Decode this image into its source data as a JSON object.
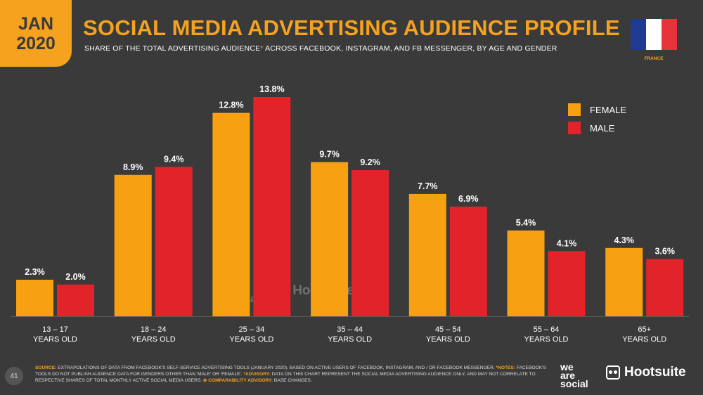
{
  "badge": {
    "month": "JAN",
    "year": "2020"
  },
  "header": {
    "title": "SOCIAL MEDIA ADVERTISING AUDIENCE PROFILE",
    "subtitle_main": "SHARE OF THE TOTAL ADVERTISING AUDIENCE",
    "subtitle_star": "*",
    "subtitle_rest": " ACROSS FACEBOOK, INSTAGRAM, AND FB MESSENGER, BY AGE AND GENDER"
  },
  "flag": {
    "country": "FRANCE",
    "colors": [
      "#1f3a93",
      "#ffffff",
      "#e8333a"
    ]
  },
  "colors": {
    "female": "#f7a012",
    "male": "#e3232a",
    "accent": "#f5a21e",
    "background": "#3a3a3a"
  },
  "chart_data": {
    "type": "bar",
    "categories": [
      [
        "13 – 17",
        "YEARS OLD"
      ],
      [
        "18 – 24",
        "YEARS OLD"
      ],
      [
        "25 – 34",
        "YEARS OLD"
      ],
      [
        "35 – 44",
        "YEARS OLD"
      ],
      [
        "45 – 54",
        "YEARS OLD"
      ],
      [
        "55 – 64",
        "YEARS OLD"
      ],
      [
        "65+",
        "YEARS OLD"
      ]
    ],
    "series": [
      {
        "name": "FEMALE",
        "values": [
          2.3,
          8.9,
          12.8,
          9.7,
          7.7,
          5.4,
          4.3
        ],
        "labels": [
          "2.3%",
          "8.9%",
          "12.8%",
          "9.7%",
          "7.7%",
          "5.4%",
          "4.3%"
        ]
      },
      {
        "name": "MALE",
        "values": [
          2.0,
          9.4,
          13.8,
          9.2,
          6.9,
          4.1,
          3.6
        ],
        "labels": [
          "2.0%",
          "9.4%",
          "13.8%",
          "9.2%",
          "6.9%",
          "4.1%",
          "3.6%"
        ]
      }
    ],
    "ylim": [
      0,
      13.8
    ],
    "legend_position": "top-right"
  },
  "watermark": {
    "we": "we",
    "are": "are",
    "social": "social",
    "hootsuite": "Hootsuite"
  },
  "footer": {
    "page_number": "41",
    "source_label": "SOURCE:",
    "source_text": " EXTRAPOLATIONS OF DATA FROM FACEBOOK'S SELF-SERVICE ADVERTISING TOOLS (JANUARY 2020). BASED ON ACTIVE USERS OF FACEBOOK, INSTAGRAM, AND / OR FACEBOOK MESSENGER. ",
    "notes_label": "*NOTES:",
    "notes_text": " FACEBOOK'S TOOLS DO NOT PUBLISH AUDIENCE DATA FOR GENDERS OTHER THAN 'MALE' OR 'FEMALE'. ",
    "advisory_label": "*ADVISORY:",
    "advisory_text": " DATA ON THIS CHART REPRESENT THE SOCIAL MEDIA ADVERTISING AUDIENCE ONLY, AND MAY NOT CORRELATE TO RESPECTIVE SHARES OF TOTAL MONTHLY ACTIVE SOCIAL MEDIA USERS. ",
    "comparability_label": "⊕ COMPARABILITY ADVISORY:",
    "comparability_text": " BASE CHANGES."
  },
  "logos": {
    "ws_we": "we",
    "ws_are": "are",
    "ws_social": "social",
    "hootsuite": "Hootsuite"
  }
}
